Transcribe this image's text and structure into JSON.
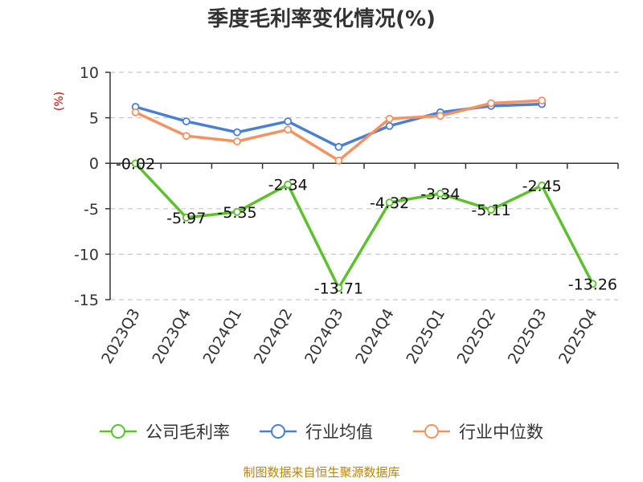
{
  "chart_data": {
    "type": "line",
    "title": "季度毛利率变化情况(%)",
    "ylabel": "(%)",
    "ylim": [
      -15,
      10
    ],
    "yticks": [
      10,
      5,
      0,
      -5,
      -10,
      -15
    ],
    "ytick_labels": [
      "10",
      "5",
      "0",
      "-5",
      "-10",
      "-15"
    ],
    "categories": [
      "2023Q3",
      "2023Q4",
      "2024Q1",
      "2024Q2",
      "2024Q3",
      "2024Q4",
      "2025Q1",
      "2025Q2",
      "2025Q3",
      "2025Q4"
    ],
    "series": [
      {
        "name": "公司毛利率",
        "color": "#5cc12d",
        "values": [
          -0.02,
          -5.97,
          -5.35,
          -2.34,
          -13.71,
          -4.32,
          -3.34,
          -5.11,
          -2.45,
          -13.26
        ],
        "data_labels": [
          "-0.02",
          "-5.97",
          "-5.35",
          "-2.34",
          "-13.71",
          "-4.32",
          "-3.34",
          "-5.11",
          "-2.45",
          "-13.26"
        ]
      },
      {
        "name": "行业均值",
        "color": "#4a7fd6",
        "values": [
          6.2,
          4.6,
          3.4,
          4.6,
          1.8,
          4.1,
          5.6,
          6.3,
          6.5,
          null
        ]
      },
      {
        "name": "行业中位数",
        "color": "#f59262",
        "values": [
          5.6,
          3.0,
          2.4,
          3.7,
          0.3,
          4.9,
          5.2,
          6.6,
          6.9,
          null
        ]
      }
    ],
    "grid": true,
    "legend_position": "bottom"
  },
  "source_text": "制图数据来自恒生聚源数据库"
}
